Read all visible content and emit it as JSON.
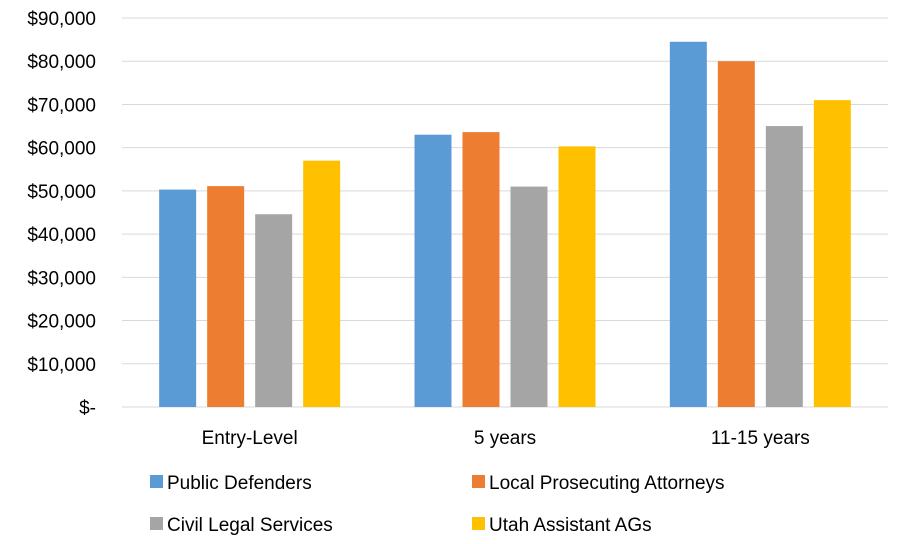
{
  "chart_data": {
    "type": "bar",
    "title": "",
    "xlabel": "",
    "ylabel": "",
    "categories": [
      "Entry-Level",
      "5 years",
      "11-15 years"
    ],
    "series": [
      {
        "name": "Public Defenders",
        "color": "#5B9BD5",
        "values": [
          50300,
          63000,
          84500
        ]
      },
      {
        "name": "Local Prosecuting Attorneys",
        "color": "#ED7D31",
        "values": [
          51100,
          63600,
          80000
        ]
      },
      {
        "name": "Civil Legal Services",
        "color": "#A5A5A5",
        "values": [
          44600,
          51000,
          65000
        ]
      },
      {
        "name": "Utah Assistant AGs",
        "color": "#FFC000",
        "values": [
          57000,
          60300,
          71000
        ]
      }
    ],
    "ylim": [
      0,
      90000
    ],
    "yticks": [
      {
        "value": 0,
        "label": "$-"
      },
      {
        "value": 10000,
        "label": "$10,000"
      },
      {
        "value": 20000,
        "label": "$20,000"
      },
      {
        "value": 30000,
        "label": "$30,000"
      },
      {
        "value": 40000,
        "label": "$40,000"
      },
      {
        "value": 50000,
        "label": "$50,000"
      },
      {
        "value": 60000,
        "label": "$60,000"
      },
      {
        "value": 70000,
        "label": "$70,000"
      },
      {
        "value": 80000,
        "label": "$80,000"
      },
      {
        "value": 90000,
        "label": "$90,000"
      }
    ],
    "grid": true,
    "gridColor": "#D9D9D9",
    "legend": "bottom"
  }
}
